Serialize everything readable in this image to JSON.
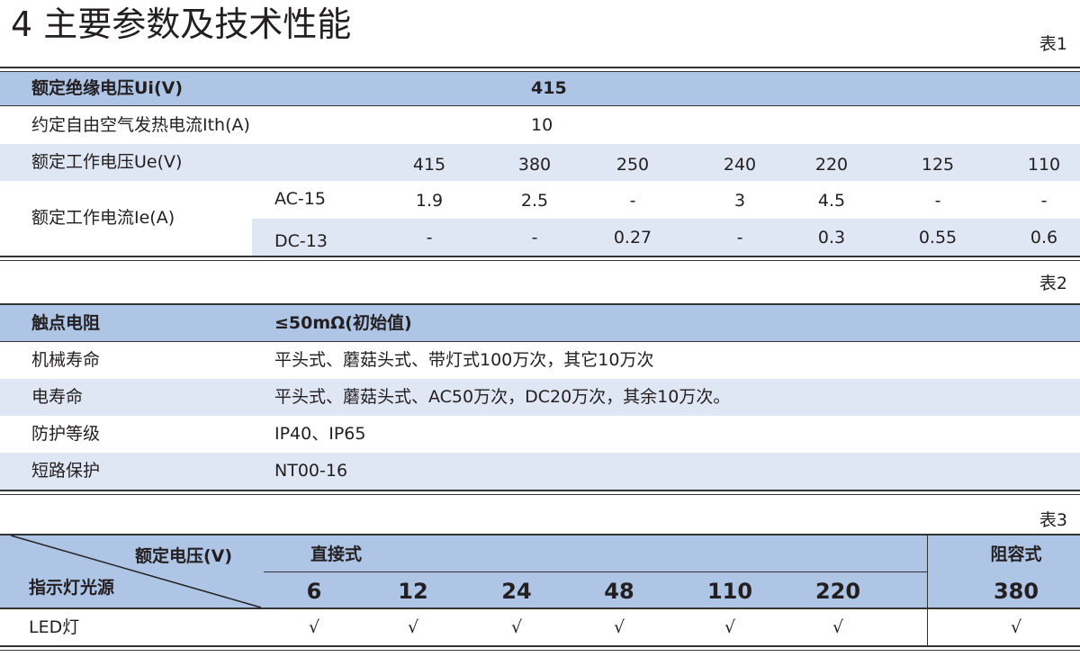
{
  "title": "4 主要参数及技术性能",
  "table1": {
    "label": "表1",
    "insulation_label": "额定绝缘电压Ui(V)",
    "insulation_value": "415",
    "thermal_label": "约定自由空气发热电流Ith(A)",
    "thermal_value": "10",
    "voltage_label": "额定工作电压Ue(V)",
    "voltages": [
      "415",
      "380",
      "250",
      "240",
      "220",
      "125",
      "110"
    ],
    "current_label": "额定工作电流Ie(A)",
    "ac_label": "AC-15",
    "ac_values": [
      "1.9",
      "2.5",
      "-",
      "3",
      "4.5",
      "-",
      "-"
    ],
    "dc_label": "DC-13",
    "dc_values": [
      "-",
      "-",
      "0.27",
      "-",
      "0.3",
      "0.55",
      "0.6"
    ]
  },
  "table2": {
    "label": "表2",
    "rows": [
      {
        "k": "触点电阻",
        "v": "≤50mΩ(初始值)"
      },
      {
        "k": "机械寿命",
        "v": "平头式、蘑菇头式、带灯式100万次，其它10万次"
      },
      {
        "k": "电寿命",
        "v": "平头式、蘑菇头式、AC50万次，DC20万次，其余10万次。"
      },
      {
        "k": "防护等级",
        "v": "IP40、IP65"
      },
      {
        "k": "短路保护",
        "v": "NT00-16"
      }
    ]
  },
  "table3": {
    "label": "表3",
    "corner_top": "额定电压(V)",
    "corner_bottom": "指示灯光源",
    "group1": "直接式",
    "group2": "阻容式",
    "voltages": [
      "6",
      "12",
      "24",
      "48",
      "110",
      "220",
      "380"
    ],
    "row_label": "LED灯",
    "checks": [
      "√",
      "√",
      "√",
      "√",
      "√",
      "√",
      "√"
    ]
  }
}
